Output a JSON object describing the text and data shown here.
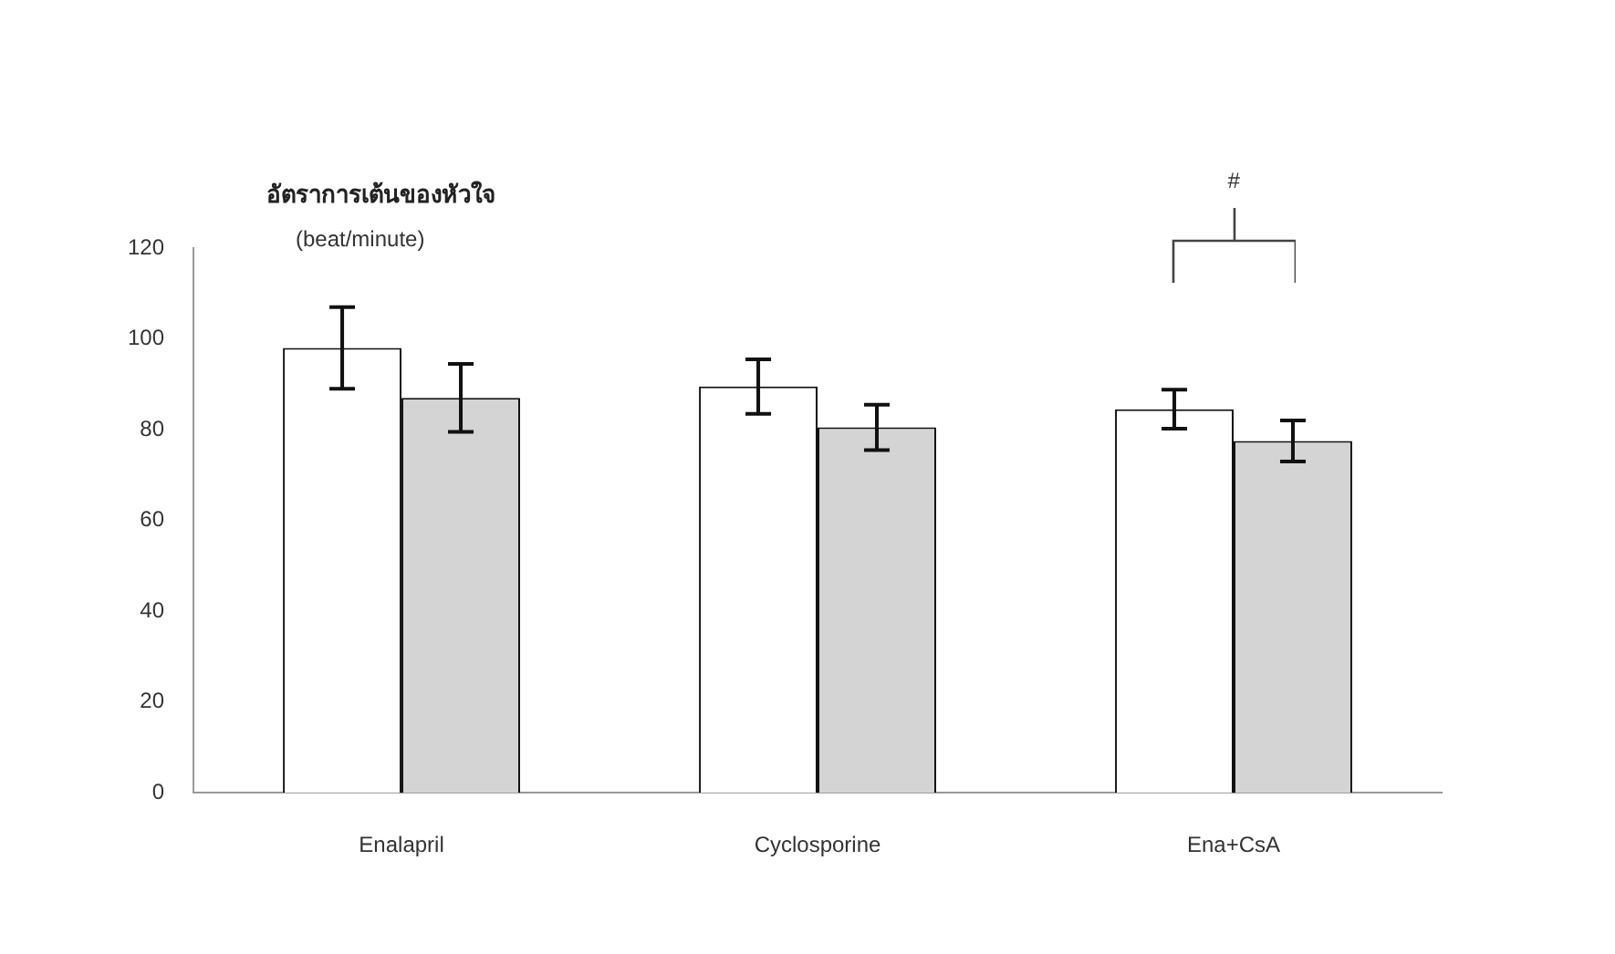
{
  "chart_data": {
    "type": "bar",
    "title": "อัตราการเต้นของหัวใจ",
    "ylabel": "(beat/minute)",
    "categories": [
      "Enalapril",
      "Cyclosporine",
      "Ena+CsA"
    ],
    "series": [
      {
        "color": "#ffffff",
        "values": [
          98,
          89.5,
          84.5
        ],
        "errors": [
          9,
          6,
          4.3
        ]
      },
      {
        "color": "#d4d4d4",
        "values": [
          87,
          80.5,
          77.5
        ],
        "errors": [
          7.5,
          5,
          4.5
        ]
      }
    ],
    "ylim": [
      0,
      120
    ],
    "yticks": [
      0,
      20,
      40,
      60,
      80,
      100,
      120
    ],
    "grid": false,
    "legend": false,
    "annotations": [
      "#"
    ]
  }
}
